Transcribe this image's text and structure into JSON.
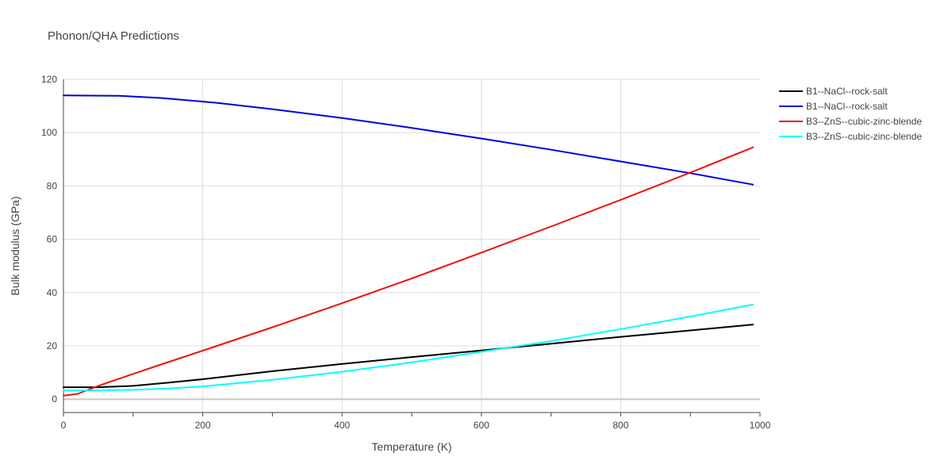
{
  "chart_data": {
    "type": "line",
    "title": "Phonon/QHA Predictions",
    "xlabel": "Temperature (K)",
    "ylabel": "Bulk modulus (GPa)",
    "xlim": [
      0,
      1000
    ],
    "ylim": [
      -5,
      120
    ],
    "xticks": [
      0,
      200,
      400,
      600,
      800,
      1000
    ],
    "yticks": [
      0,
      20,
      40,
      60,
      80,
      100,
      120
    ],
    "grid": true,
    "legend_position": "top-right",
    "series": [
      {
        "name": "B1--NaCl--rock-salt",
        "color": "#000000",
        "x": [
          0,
          50,
          100,
          150,
          200,
          300,
          400,
          500,
          600,
          700,
          800,
          900,
          990
        ],
        "y": [
          4.5,
          4.5,
          5.0,
          6.2,
          7.5,
          10.5,
          13.2,
          15.8,
          18.3,
          20.8,
          23.4,
          25.8,
          28.0
        ]
      },
      {
        "name": "B1--NaCl--rock-salt",
        "color": "#0000dd",
        "x": [
          0,
          80,
          140,
          220,
          300,
          400,
          500,
          600,
          700,
          800,
          900,
          990
        ],
        "y": [
          114.0,
          113.8,
          113.0,
          111.2,
          108.8,
          105.5,
          101.8,
          97.8,
          93.6,
          89.2,
          84.8,
          80.5
        ]
      },
      {
        "name": "B3--ZnS--cubic-zinc-blende",
        "color": "#ee1111",
        "x": [
          0,
          20,
          50,
          100,
          140,
          200,
          300,
          400,
          500,
          600,
          700,
          800,
          900,
          990
        ],
        "y": [
          1.3,
          2.0,
          5.0,
          9.5,
          13.0,
          18.2,
          27.0,
          36.0,
          45.3,
          55.0,
          64.8,
          74.8,
          85.0,
          94.5
        ]
      },
      {
        "name": "B3--ZnS--cubic-zinc-blende",
        "color": "#00ffff",
        "x": [
          0,
          50,
          100,
          150,
          200,
          300,
          400,
          500,
          600,
          700,
          800,
          900,
          990
        ],
        "y": [
          3.3,
          3.3,
          3.5,
          4.0,
          4.8,
          7.3,
          10.3,
          13.8,
          17.8,
          21.8,
          26.3,
          31.0,
          35.5
        ]
      }
    ]
  }
}
